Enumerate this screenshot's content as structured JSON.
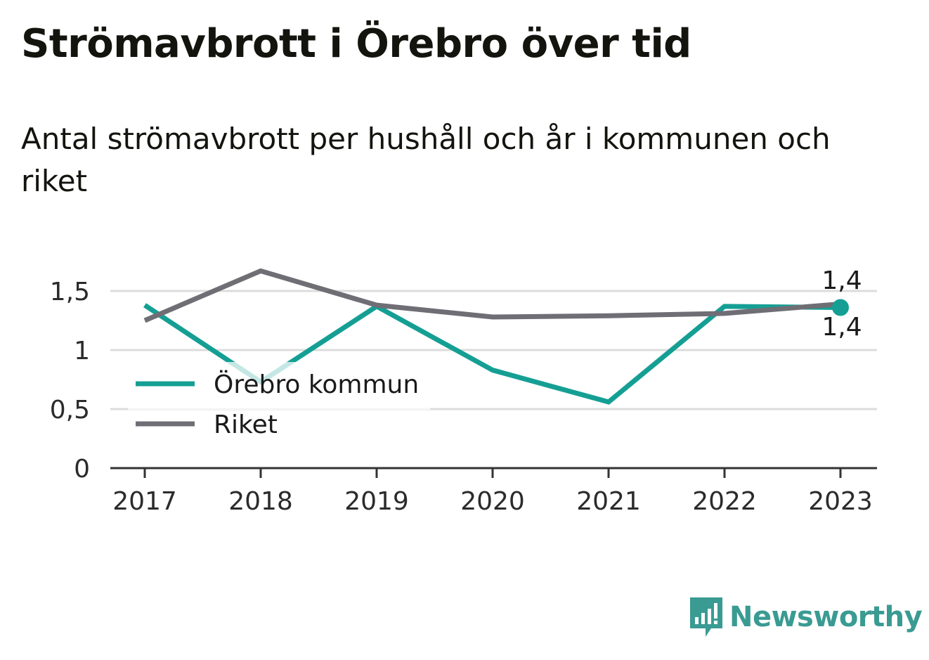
{
  "title": "Strömavbrott i Örebro över tid",
  "subtitle": "Antal strömavbrott per hushåll och år i kommunen och riket",
  "brand": {
    "name": "Newsworthy",
    "icon": "newsworthy-logo-icon",
    "color": "#3a9b92"
  },
  "chart_data": {
    "type": "line",
    "title": "Strömavbrott i Örebro över tid",
    "subtitle": "Antal strömavbrott per hushåll och år i kommunen och riket",
    "x": [
      "2017",
      "2018",
      "2019",
      "2020",
      "2021",
      "2022",
      "2023"
    ],
    "ylim": [
      0,
      1.8
    ],
    "yticks": [
      0,
      0.5,
      1,
      1.5
    ],
    "ytick_labels": [
      "0",
      "0,5",
      "1",
      "1,5"
    ],
    "grid": true,
    "legend_placement": "lower-left",
    "series": [
      {
        "name": "Örebro kommun",
        "color": "#159f94",
        "values": [
          1.38,
          0.73,
          1.37,
          0.83,
          0.56,
          1.37,
          1.36
        ]
      },
      {
        "name": "Riket",
        "color": "#6f6e75",
        "values": [
          1.25,
          1.67,
          1.38,
          1.28,
          1.29,
          1.31,
          1.39
        ]
      }
    ],
    "end_labels": {
      "Riket": "1,4",
      "Örebro kommun": "1,4"
    }
  }
}
